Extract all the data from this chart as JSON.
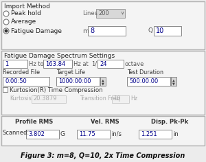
{
  "title": "Figure 3: m=8, Q=10, 2x Time Compression",
  "bg_color": "#ececec",
  "import_method_label": "Import Method",
  "radio_options": [
    "Peak hold",
    "Average",
    "Fatigue Damage"
  ],
  "radio_selected": 2,
  "lines_label": "Lines",
  "lines_value": "200",
  "m_label": "m",
  "m_value": "8",
  "q_label": "Q",
  "q_value": "10",
  "fdss_label": "Fatigue Damage Spectrum Settings",
  "hz_from": "1",
  "hz_to": "163.84",
  "hz_at_denom": "24",
  "octave_label": "octave",
  "rec_file_label": "Recorded File",
  "rec_file_value": "0:00:50",
  "target_life_label": "Target Life",
  "target_life_value": "1000:00:00",
  "test_dur_label": "Test Duration",
  "test_dur_value": "500:00:00",
  "kurtosion_label": "Kurtosion(R) Time Compression",
  "kurtosis_label": "Kurtosis",
  "kurtosis_value": "20.3879",
  "trans_freq_label": "Transition Freq",
  "trans_freq_value": "10",
  "hz_unit": "Hz",
  "profile_rms_label": "Profile RMS",
  "vel_rms_label": "Vel. RMS",
  "disp_pkpk_label": "Disp. Pk-Pk",
  "scanned_label": "Scanned:",
  "profile_rms_value": "3.802",
  "profile_rms_unit": "G",
  "vel_rms_value": "11.75",
  "vel_rms_unit": "in/s",
  "disp_pkpk_value": "1.251",
  "disp_pkpk_unit": "in"
}
